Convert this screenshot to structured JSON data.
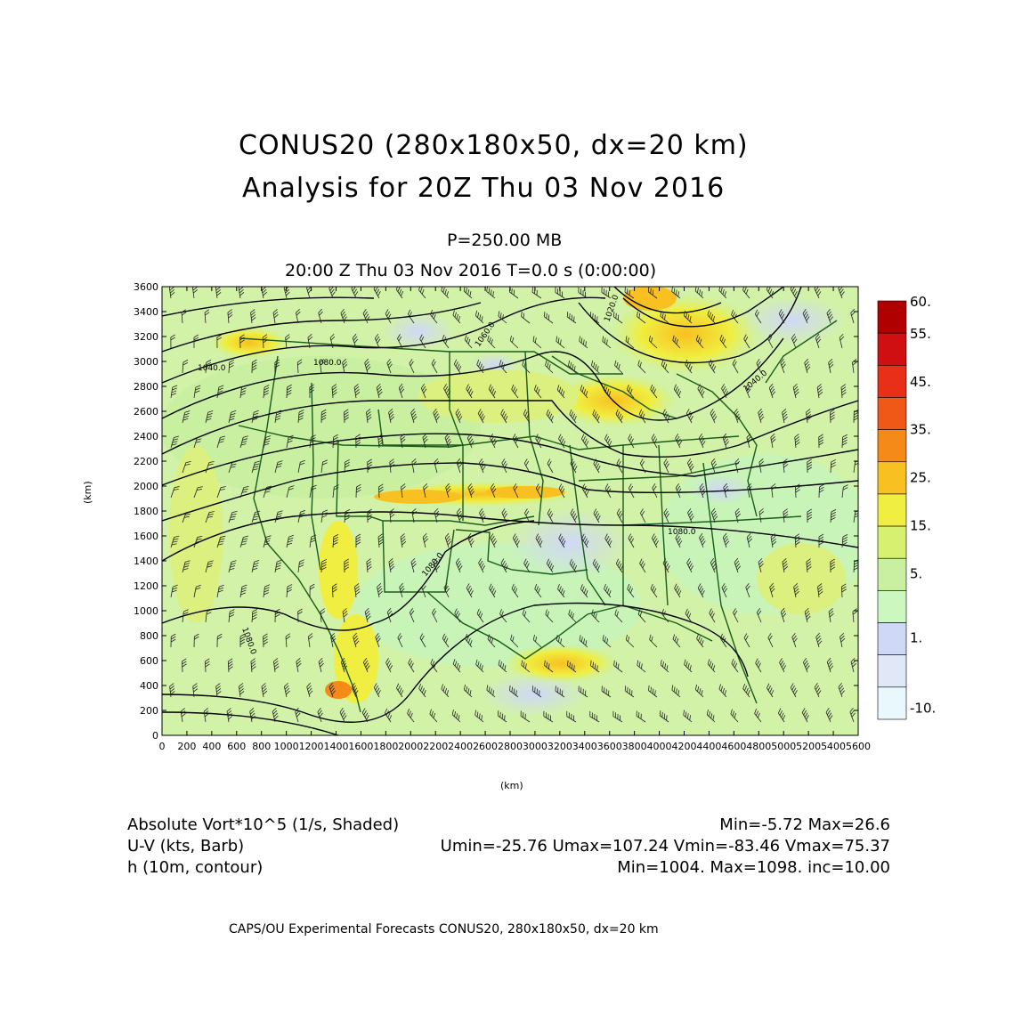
{
  "header": {
    "title_line1": "CONUS20 (280x180x50, dx=20 km)",
    "title_line2": "Analysis for 20Z Thu 03 Nov 2016",
    "level": "P=250.00 MB",
    "valid_time": "20:00 Z Thu 03 Nov 2016    T=0.0 s (0:00:00)"
  },
  "axes": {
    "x_label": "(km)",
    "y_label": "(km)",
    "x_ticks": [
      "0",
      "200",
      "400",
      "600",
      "800",
      "1000",
      "1200",
      "1400",
      "1600",
      "1800",
      "2000",
      "2200",
      "2400",
      "2600",
      "2800",
      "3000",
      "3200",
      "3400",
      "3600",
      "3800",
      "4000",
      "4200",
      "4400",
      "4600",
      "4800",
      "5000",
      "5200",
      "5400",
      "5600"
    ],
    "y_ticks": [
      "0",
      "200",
      "400",
      "600",
      "800",
      "1000",
      "1200",
      "1400",
      "1600",
      "1800",
      "2000",
      "2200",
      "2400",
      "2600",
      "2800",
      "3000",
      "3200",
      "3400",
      "3600"
    ]
  },
  "colorbar": {
    "labels": [
      "60.",
      "55.",
      "45.",
      "35.",
      "25.",
      "15.",
      "5.",
      "1.",
      "-10."
    ],
    "colors": [
      "#b00000",
      "#d01010",
      "#e83018",
      "#f05818",
      "#f58a18",
      "#f8c020",
      "#f0ee40",
      "#d8f070",
      "#c8f0a0",
      "#ccf8c0",
      "#d0d8f8",
      "#e0e8f8",
      "#e8f8fc"
    ]
  },
  "contour_labels": [
    "1020.0",
    "1060.0",
    "1040.0",
    "1080.0",
    "1080.0",
    "1080.0",
    "1080.0",
    "1040.0"
  ],
  "legend": {
    "row1_left": "Absolute Vort*10^5 (1/s, Shaded)",
    "row1_right": "Min=-5.72 Max=26.6",
    "row2_left": "U-V (kts, Barb)",
    "row2_right": "Umin=-25.76 Umax=107.24 Vmin=-83.46 Vmax=75.37",
    "row3_left": "h (10m, contour)",
    "row3_right": "Min=1004. Max=1098. inc=10.00"
  },
  "footer": "CAPS/OU Experimental Forecasts  CONUS20, 280x180x50, dx=20 km"
}
